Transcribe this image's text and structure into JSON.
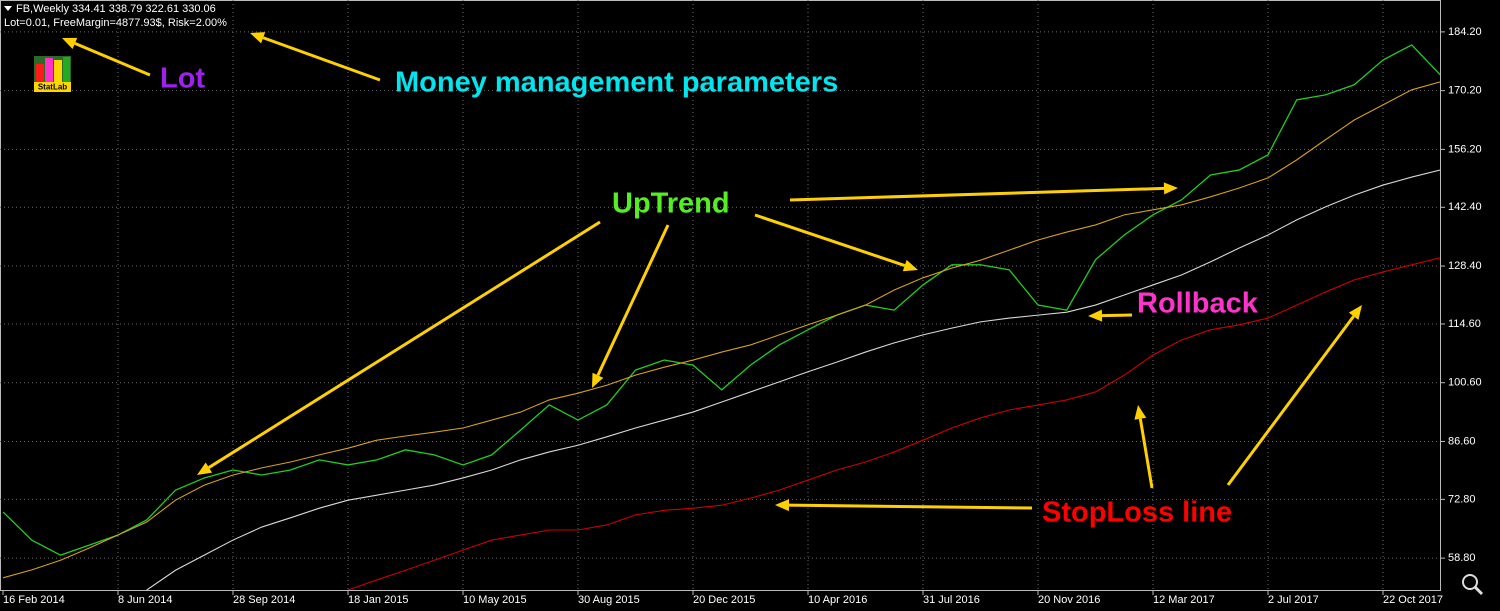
{
  "header": {
    "symbol_line": "FB,Weekly  334.41 338.79 322.61 330.06",
    "money_line": "Lot=0.01, FreeMargin=4877.93$, Risk=2.00%",
    "logo": "StatLab"
  },
  "chart_data": {
    "type": "line",
    "grid": true,
    "categories": [
      "16 Feb 2014",
      null,
      null,
      null,
      "8 Jun 2014",
      null,
      null,
      null,
      "28 Sep 2014",
      null,
      null,
      null,
      "18 Jan 2015",
      null,
      null,
      null,
      "10 May 2015",
      null,
      null,
      null,
      "30 Aug 2015",
      null,
      null,
      null,
      "20 Dec 2015",
      null,
      null,
      null,
      "10 Apr 2016",
      null,
      null,
      null,
      "31 Jul 2016",
      null,
      null,
      null,
      "20 Nov 2016",
      null,
      null,
      null,
      "12 Mar 2017",
      null,
      null,
      null,
      "2 Jul 2017",
      null,
      null,
      null,
      "22 Oct 2017",
      null,
      null
    ],
    "ylim": [
      51.2,
      191.8
    ],
    "yticks": [
      {
        "value": 58.8,
        "label": "58.80"
      },
      {
        "value": 72.8,
        "label": "72.80"
      },
      {
        "value": 86.6,
        "label": "86.60"
      },
      {
        "value": 100.6,
        "label": "100.60"
      },
      {
        "value": 114.6,
        "label": "114.60"
      },
      {
        "value": 128.4,
        "label": "128.40"
      },
      {
        "value": 142.4,
        "label": "142.40"
      },
      {
        "value": 156.2,
        "label": "156.20"
      },
      {
        "value": 170.2,
        "label": "170.20"
      },
      {
        "value": 184.2,
        "label": "184.20"
      }
    ],
    "series": [
      {
        "color": "#22cc22",
        "values": [
          69.8,
          63.1,
          59.5,
          61.9,
          64.3,
          67.9,
          75.0,
          77.9,
          79.8,
          78.6,
          79.8,
          82.2,
          81.0,
          82.2,
          84.6,
          83.4,
          81.0,
          83.4,
          89.3,
          95.3,
          91.7,
          95.3,
          103.6,
          106.0,
          104.8,
          98.9,
          104.8,
          109.6,
          113.2,
          116.7,
          119.1,
          117.9,
          123.9,
          128.7,
          128.7,
          127.5,
          119.1,
          117.9,
          129.9,
          135.8,
          140.6,
          144.2,
          150.1,
          151.3,
          154.9,
          168.0,
          169.2,
          171.6,
          177.5,
          181.1,
          173.9
        ]
      },
      {
        "color": "#d4a017",
        "values": [
          54.1,
          56.0,
          58.3,
          61.2,
          64.3,
          67.4,
          72.6,
          76.2,
          78.6,
          80.3,
          81.7,
          83.4,
          85.0,
          86.9,
          87.9,
          88.8,
          89.8,
          91.7,
          93.6,
          96.5,
          98.1,
          100.0,
          102.4,
          104.3,
          106.0,
          107.9,
          109.6,
          112.0,
          114.4,
          116.7,
          119.1,
          122.7,
          125.6,
          127.9,
          129.8,
          132.2,
          134.6,
          136.5,
          138.2,
          140.6,
          141.8,
          143.0,
          144.9,
          147.0,
          149.4,
          153.7,
          158.5,
          163.2,
          166.8,
          170.4,
          172.3
        ]
      },
      {
        "color": "#d8d8d8",
        "values": [
          null,
          null,
          null,
          null,
          null,
          51.2,
          55.9,
          59.5,
          63.1,
          66.2,
          68.4,
          70.7,
          72.6,
          73.8,
          75.0,
          76.2,
          77.9,
          79.8,
          82.2,
          84.1,
          85.7,
          87.7,
          89.8,
          91.7,
          93.6,
          96.0,
          98.4,
          100.8,
          103.2,
          105.5,
          107.9,
          110.1,
          112.0,
          113.6,
          115.1,
          116.0,
          116.7,
          117.4,
          119.1,
          121.5,
          123.9,
          126.3,
          129.4,
          132.7,
          135.8,
          139.4,
          142.5,
          145.3,
          147.7,
          149.6,
          151.3
        ]
      },
      {
        "color": "#cc0000",
        "values": [
          null,
          null,
          null,
          null,
          null,
          null,
          null,
          null,
          null,
          null,
          null,
          null,
          51.2,
          53.6,
          55.9,
          58.3,
          60.7,
          63.1,
          64.3,
          65.5,
          65.5,
          66.7,
          69.1,
          70.2,
          70.7,
          71.4,
          73.1,
          75.0,
          77.4,
          79.8,
          81.7,
          84.1,
          86.9,
          89.8,
          92.2,
          94.1,
          95.3,
          96.5,
          98.4,
          102.4,
          107.2,
          110.8,
          113.2,
          114.4,
          116.0,
          119.1,
          122.2,
          125.1,
          127.0,
          128.7,
          130.4
        ]
      }
    ],
    "annotations": [
      {
        "text": "Lot",
        "color": "#a020f0"
      },
      {
        "text": "Money management parameters",
        "color": "#00e5ee"
      },
      {
        "text": "UpTrend",
        "color": "#55ee22"
      },
      {
        "text": "Rollback",
        "color": "#ff33cc"
      },
      {
        "text": "StopLoss line",
        "color": "#ff0000"
      }
    ]
  }
}
